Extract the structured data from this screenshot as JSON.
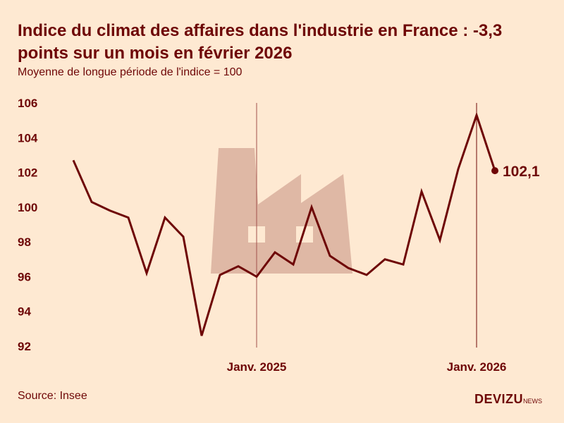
{
  "header": {
    "title": "Indice du climat des affaires dans l'industrie en France : -3,3 points sur un mois en février 2026",
    "subtitle": "Moyenne de longue période de l'indice = 100"
  },
  "footer": {
    "source": "Source: Insee",
    "logo_main": "DEVIZU",
    "logo_suffix": "NEWS"
  },
  "colors": {
    "background": "#fee9d2",
    "line": "#6e0606",
    "factory": "#dfb8a5"
  },
  "chart_data": {
    "type": "line",
    "title": "Indice du climat des affaires dans l'industrie en France : -3,3 points sur un mois en février 2026",
    "subtitle": "Moyenne de longue période de l'indice = 100",
    "ylim": [
      92,
      106
    ],
    "y_ticks": [
      "92",
      "94",
      "96",
      "98",
      "100",
      "102",
      "104",
      "106"
    ],
    "x_ticks": [
      {
        "x": "2025-01",
        "label": "Janv. 2025"
      },
      {
        "x": "2026-01",
        "label": "Janv. 2026"
      }
    ],
    "grid": false,
    "background_icon": "factory-icon",
    "x": [
      "2024-03",
      "2024-04",
      "2024-05",
      "2024-06",
      "2024-07",
      "2024-08",
      "2024-09",
      "2024-10",
      "2024-11",
      "2024-12",
      "2025-01",
      "2025-02",
      "2025-03",
      "2025-04",
      "2025-05",
      "2025-06",
      "2025-07",
      "2025-08",
      "2025-09",
      "2025-10",
      "2025-11",
      "2025-12",
      "2026-01",
      "2026-02"
    ],
    "values": [
      102.7,
      100.3,
      99.8,
      99.4,
      96.2,
      99.4,
      98.3,
      92.6,
      96.1,
      96.6,
      96.0,
      97.4,
      96.7,
      100.0,
      97.2,
      96.5,
      96.1,
      97.0,
      96.7,
      100.9,
      98.1,
      102.2,
      105.3,
      102.1
    ],
    "last_label": "102,1"
  }
}
